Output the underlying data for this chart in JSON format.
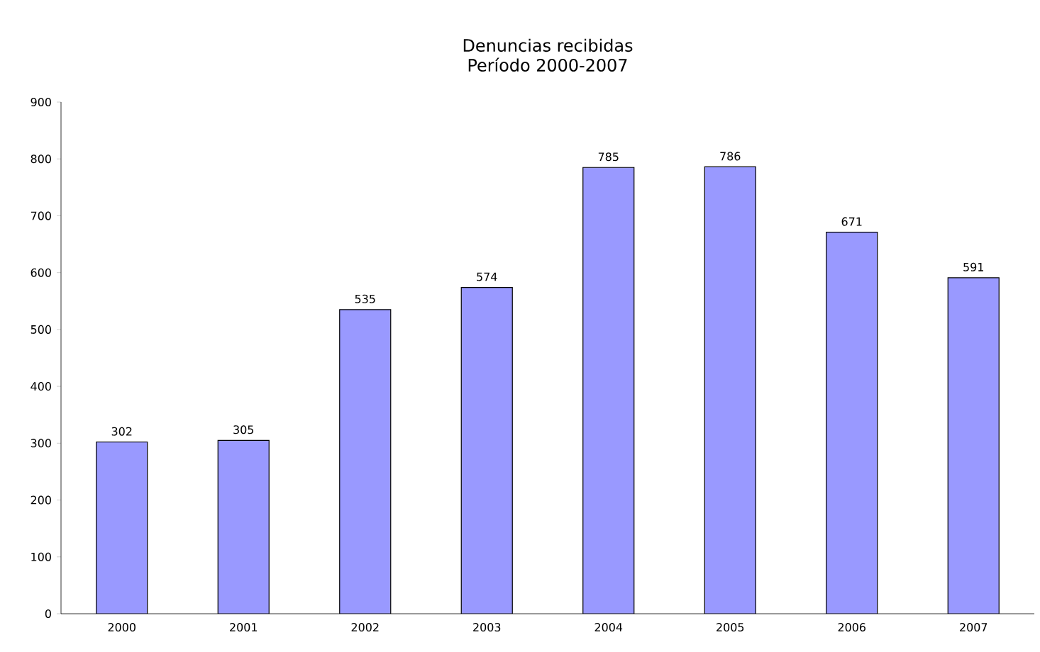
{
  "chart_data": {
    "type": "bar",
    "title": "Denuncias recibidas",
    "subtitle": "Período 2000-2007",
    "categories": [
      "2000",
      "2001",
      "2002",
      "2003",
      "2004",
      "2005",
      "2006",
      "2007"
    ],
    "values": [
      302,
      305,
      535,
      574,
      785,
      786,
      671,
      591
    ],
    "color": "#9999ff",
    "data_labels": true,
    "grid": false,
    "ylim": [
      0,
      900
    ],
    "yticks": [
      0,
      100,
      200,
      300,
      400,
      500,
      600,
      700,
      800,
      900
    ]
  }
}
